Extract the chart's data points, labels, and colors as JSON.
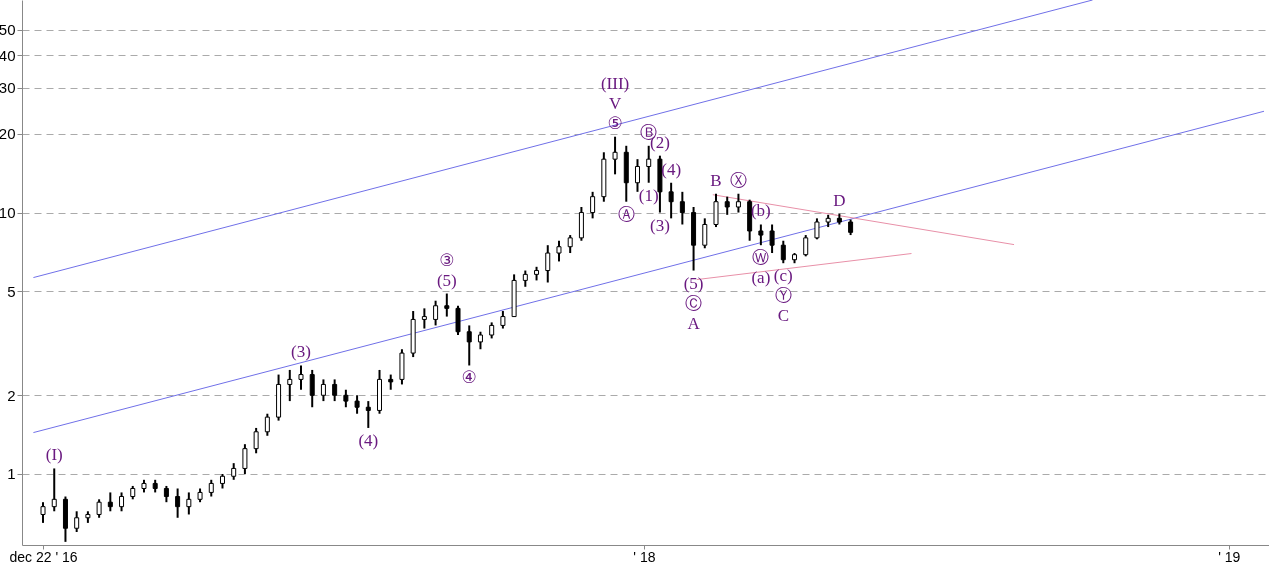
{
  "chart_data": {
    "type": "candlestick",
    "grid": "y",
    "log": true,
    "xlim": [
      "2016-12-12",
      "2019-01-23"
    ],
    "ylim": [
      0.535,
      65
    ],
    "xticks": [
      {
        "value": "2016-12-22",
        "label": "dec 22 ' 16"
      },
      {
        "value": "2018-01-01",
        "label": "' 18"
      },
      {
        "value": "2019-01-01",
        "label": "' 19"
      }
    ],
    "yticks": [
      1,
      2,
      5,
      10,
      20,
      30,
      40,
      50
    ],
    "color": "#000000",
    "x": [
      "2016-12-22",
      "2016-12-29",
      "2017-01-05",
      "2017-01-12",
      "2017-01-19",
      "2017-01-26",
      "2017-02-02",
      "2017-02-09",
      "2017-02-16",
      "2017-02-23",
      "2017-03-02",
      "2017-03-09",
      "2017-03-16",
      "2017-03-23",
      "2017-03-30",
      "2017-04-06",
      "2017-04-13",
      "2017-04-20",
      "2017-04-27",
      "2017-05-04",
      "2017-05-11",
      "2017-05-18",
      "2017-05-25",
      "2017-06-01",
      "2017-06-08",
      "2017-06-15",
      "2017-06-22",
      "2017-06-29",
      "2017-07-06",
      "2017-07-13",
      "2017-07-20",
      "2017-07-27",
      "2017-08-03",
      "2017-08-10",
      "2017-08-17",
      "2017-08-24",
      "2017-08-31",
      "2017-09-07",
      "2017-09-14",
      "2017-09-21",
      "2017-09-28",
      "2017-10-05",
      "2017-10-12",
      "2017-10-19",
      "2017-10-26",
      "2017-11-02",
      "2017-11-09",
      "2017-11-16",
      "2017-11-23",
      "2017-11-30",
      "2017-12-07",
      "2017-12-14",
      "2017-12-21",
      "2017-12-28",
      "2018-01-04",
      "2018-01-11",
      "2018-01-18",
      "2018-01-25",
      "2018-02-01",
      "2018-02-08",
      "2018-02-15",
      "2018-02-22",
      "2018-03-01",
      "2018-03-08",
      "2018-03-15",
      "2018-03-22",
      "2018-03-29",
      "2018-04-05",
      "2018-04-12",
      "2018-04-19",
      "2018-04-26",
      "2018-05-03",
      "2018-05-10"
    ],
    "ohlc": [
      [
        0.7,
        0.78,
        0.65,
        0.75
      ],
      [
        0.75,
        1.05,
        0.72,
        0.8
      ],
      [
        0.8,
        0.82,
        0.55,
        0.62
      ],
      [
        0.62,
        0.72,
        0.6,
        0.68
      ],
      [
        0.68,
        0.72,
        0.65,
        0.7
      ],
      [
        0.7,
        0.8,
        0.68,
        0.78
      ],
      [
        0.78,
        0.85,
        0.72,
        0.75
      ],
      [
        0.75,
        0.85,
        0.72,
        0.82
      ],
      [
        0.82,
        0.9,
        0.8,
        0.88
      ],
      [
        0.88,
        0.95,
        0.85,
        0.92
      ],
      [
        0.92,
        0.95,
        0.85,
        0.88
      ],
      [
        0.88,
        0.9,
        0.78,
        0.82
      ],
      [
        0.82,
        0.88,
        0.68,
        0.75
      ],
      [
        0.75,
        0.85,
        0.7,
        0.8
      ],
      [
        0.8,
        0.88,
        0.78,
        0.85
      ],
      [
        0.85,
        0.95,
        0.82,
        0.92
      ],
      [
        0.92,
        1.0,
        0.88,
        0.98
      ],
      [
        0.98,
        1.1,
        0.95,
        1.05
      ],
      [
        1.05,
        1.3,
        1.0,
        1.25
      ],
      [
        1.25,
        1.5,
        1.2,
        1.45
      ],
      [
        1.45,
        1.7,
        1.4,
        1.65
      ],
      [
        1.65,
        2.4,
        1.6,
        2.2
      ],
      [
        2.2,
        2.5,
        1.9,
        2.3
      ],
      [
        2.3,
        2.6,
        2.1,
        2.4
      ],
      [
        2.4,
        2.5,
        1.8,
        2.0
      ],
      [
        2.0,
        2.3,
        1.9,
        2.2
      ],
      [
        2.2,
        2.3,
        1.9,
        2.0
      ],
      [
        2.0,
        2.1,
        1.8,
        1.9
      ],
      [
        1.9,
        2.0,
        1.7,
        1.8
      ],
      [
        1.8,
        1.9,
        1.5,
        1.75
      ],
      [
        1.75,
        2.5,
        1.7,
        2.3
      ],
      [
        2.3,
        2.4,
        2.1,
        2.25
      ],
      [
        2.3,
        3.0,
        2.2,
        2.9
      ],
      [
        2.9,
        4.2,
        2.8,
        3.9
      ],
      [
        3.9,
        4.3,
        3.6,
        4.0
      ],
      [
        3.9,
        4.6,
        3.7,
        4.4
      ],
      [
        4.4,
        4.9,
        4.0,
        4.3
      ],
      [
        4.3,
        4.4,
        3.4,
        3.5
      ],
      [
        3.5,
        3.7,
        2.6,
        3.2
      ],
      [
        3.2,
        3.5,
        3.0,
        3.4
      ],
      [
        3.4,
        3.8,
        3.3,
        3.7
      ],
      [
        3.7,
        4.2,
        3.6,
        4.0
      ],
      [
        4.0,
        5.8,
        4.0,
        5.5
      ],
      [
        5.5,
        6.0,
        5.2,
        5.8
      ],
      [
        5.8,
        6.2,
        5.5,
        6.0
      ],
      [
        6.0,
        7.5,
        5.4,
        7.0
      ],
      [
        7.0,
        7.8,
        6.5,
        7.4
      ],
      [
        7.4,
        8.2,
        7.0,
        8.0
      ],
      [
        8.0,
        10.5,
        7.8,
        10.0
      ],
      [
        10.0,
        12,
        9.5,
        11.5
      ],
      [
        11.5,
        17,
        11,
        16
      ],
      [
        16,
        19.5,
        14,
        17
      ],
      [
        17,
        18,
        11,
        13
      ],
      [
        13,
        16,
        12,
        15
      ],
      [
        15,
        18,
        13,
        16
      ],
      [
        16,
        16.5,
        10,
        12
      ],
      [
        12,
        13,
        9.5,
        11
      ],
      [
        11,
        12,
        9,
        10
      ],
      [
        10,
        10.5,
        6,
        7.5
      ],
      [
        7.5,
        9.5,
        7.3,
        9
      ],
      [
        9,
        11.8,
        8.8,
        11
      ],
      [
        11,
        11.5,
        9.8,
        10.5
      ],
      [
        10.5,
        11.8,
        10,
        11
      ],
      [
        11,
        11.2,
        7.8,
        8.5
      ],
      [
        8.5,
        9,
        7.5,
        8.2
      ],
      [
        8.5,
        9,
        7,
        7.5
      ],
      [
        7.5,
        7.8,
        6.4,
        6.6
      ],
      [
        6.6,
        7,
        6.4,
        6.9
      ],
      [
        6.9,
        8.2,
        6.8,
        8
      ],
      [
        8,
        9.5,
        7.9,
        9.2
      ],
      [
        9.2,
        9.8,
        8.8,
        9.5
      ],
      [
        9.5,
        9.9,
        9,
        9.2
      ],
      [
        9.2,
        9.4,
        8.2,
        8.4
      ]
    ],
    "series": [
      {
        "type": "line",
        "color": "#7070e8",
        "x": [
          "2016-12-16",
          "2018-10-08"
        ],
        "values": [
          5.64,
          65
        ]
      },
      {
        "type": "line",
        "color": "#7070e8",
        "x": [
          "2016-12-16",
          "2019-01-23"
        ],
        "values": [
          1.44,
          24.4
        ]
      },
      {
        "type": "line",
        "color": "#e890a8",
        "x": [
          "2018-02-13",
          "2018-08-20"
        ],
        "values": [
          11.7,
          7.54
        ]
      },
      {
        "type": "line",
        "color": "#e890a8",
        "x": [
          "2018-02-03",
          "2018-06-17"
        ],
        "values": [
          5.54,
          6.97
        ]
      }
    ],
    "annotations": [
      {
        "text": "(I)",
        "x": "2016-12-29",
        "y": 1.05
      },
      {
        "text": "(3)",
        "x": "2017-06-01",
        "y": 2.6
      },
      {
        "text": "(4)",
        "x": "2017-07-13",
        "y": 1.5
      },
      {
        "text": "(5)",
        "x": "2017-08-31",
        "y": 4.9
      },
      {
        "text": "③",
        "x": "2017-08-31",
        "y": 4.9
      },
      {
        "text": "④",
        "x": "2017-09-14",
        "y": 2.6
      },
      {
        "text": "⑤",
        "x": "2017-12-14",
        "y": 19.5
      },
      {
        "text": "V",
        "x": "2017-12-14",
        "y": 19.5
      },
      {
        "text": "(III)",
        "x": "2017-12-14",
        "y": 19.5
      },
      {
        "text": "Ⓐ",
        "x": "2017-12-21",
        "y": 11
      },
      {
        "text": "Ⓑ",
        "x": "2018-01-04",
        "y": 18
      },
      {
        "text": "(1)",
        "x": "2018-01-04",
        "y": 13
      },
      {
        "text": "(2)",
        "x": "2018-01-11",
        "y": 16.5
      },
      {
        "text": "(3)",
        "x": "2018-01-11",
        "y": 10
      },
      {
        "text": "(4)",
        "x": "2018-01-18",
        "y": 13
      },
      {
        "text": "(5)",
        "x": "2018-02-01",
        "y": 6
      },
      {
        "text": "Ⓒ",
        "x": "2018-02-01",
        "y": 6
      },
      {
        "text": "A",
        "x": "2018-02-01",
        "y": 6
      },
      {
        "text": "B",
        "x": "2018-02-15",
        "y": 11.8
      },
      {
        "text": "Ⓧ",
        "x": "2018-03-01",
        "y": 11.8
      },
      {
        "text": "(b)",
        "x": "2018-03-15",
        "y": 9
      },
      {
        "text": "Ⓦ",
        "x": "2018-03-15",
        "y": 7.5
      },
      {
        "text": "(a)",
        "x": "2018-03-15",
        "y": 7.5
      },
      {
        "text": "(c)",
        "x": "2018-03-29",
        "y": 6.4
      },
      {
        "text": "Ⓨ",
        "x": "2018-03-29",
        "y": 6.4
      },
      {
        "text": "C",
        "x": "2018-03-29",
        "y": 6.4
      },
      {
        "text": "D",
        "x": "2018-05-03",
        "y": 9.9
      }
    ]
  }
}
